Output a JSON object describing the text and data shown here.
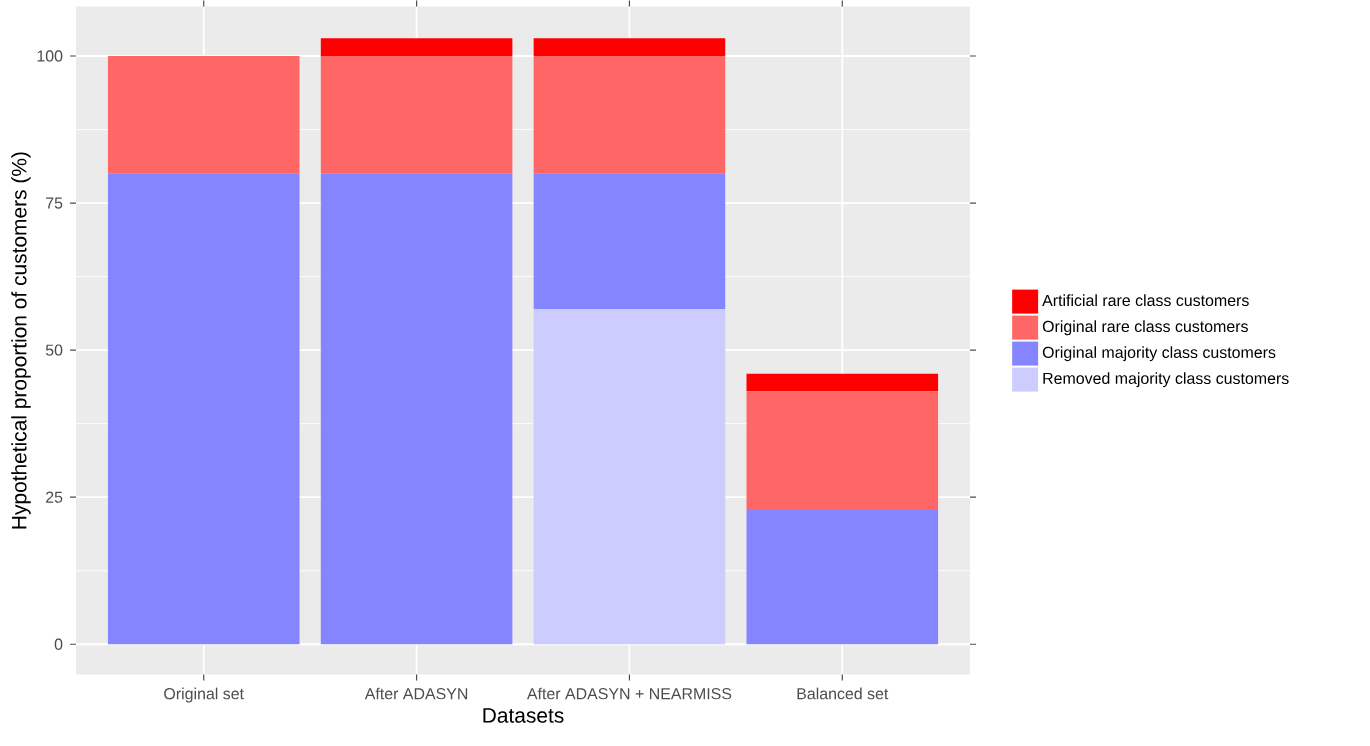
{
  "chart_data": {
    "type": "bar",
    "stacked": true,
    "xlabel": "Datasets",
    "ylabel": "Hypothetical proportion of customers (%)",
    "categories": [
      "Original set",
      "After ADASYN",
      "After ADASYN + NEARMISS",
      "Balanced set"
    ],
    "series": [
      {
        "name": "Removed majority class customers",
        "color": "#ccccff",
        "values": [
          0,
          0,
          57,
          0
        ]
      },
      {
        "name": "Original majority class customers",
        "color": "#8585ff",
        "values": [
          80,
          80,
          23,
          23
        ]
      },
      {
        "name": "Original rare class customers",
        "color": "#ff6666",
        "values": [
          20,
          20,
          20,
          20
        ]
      },
      {
        "name": "Artificial rare class customers",
        "color": "#ff0000",
        "values": [
          0,
          3,
          3,
          3
        ]
      }
    ],
    "ylim": [
      -5.16,
      108.4
    ],
    "yticks": [
      0,
      25,
      50,
      75,
      100
    ],
    "grid": true,
    "legend": "right"
  }
}
